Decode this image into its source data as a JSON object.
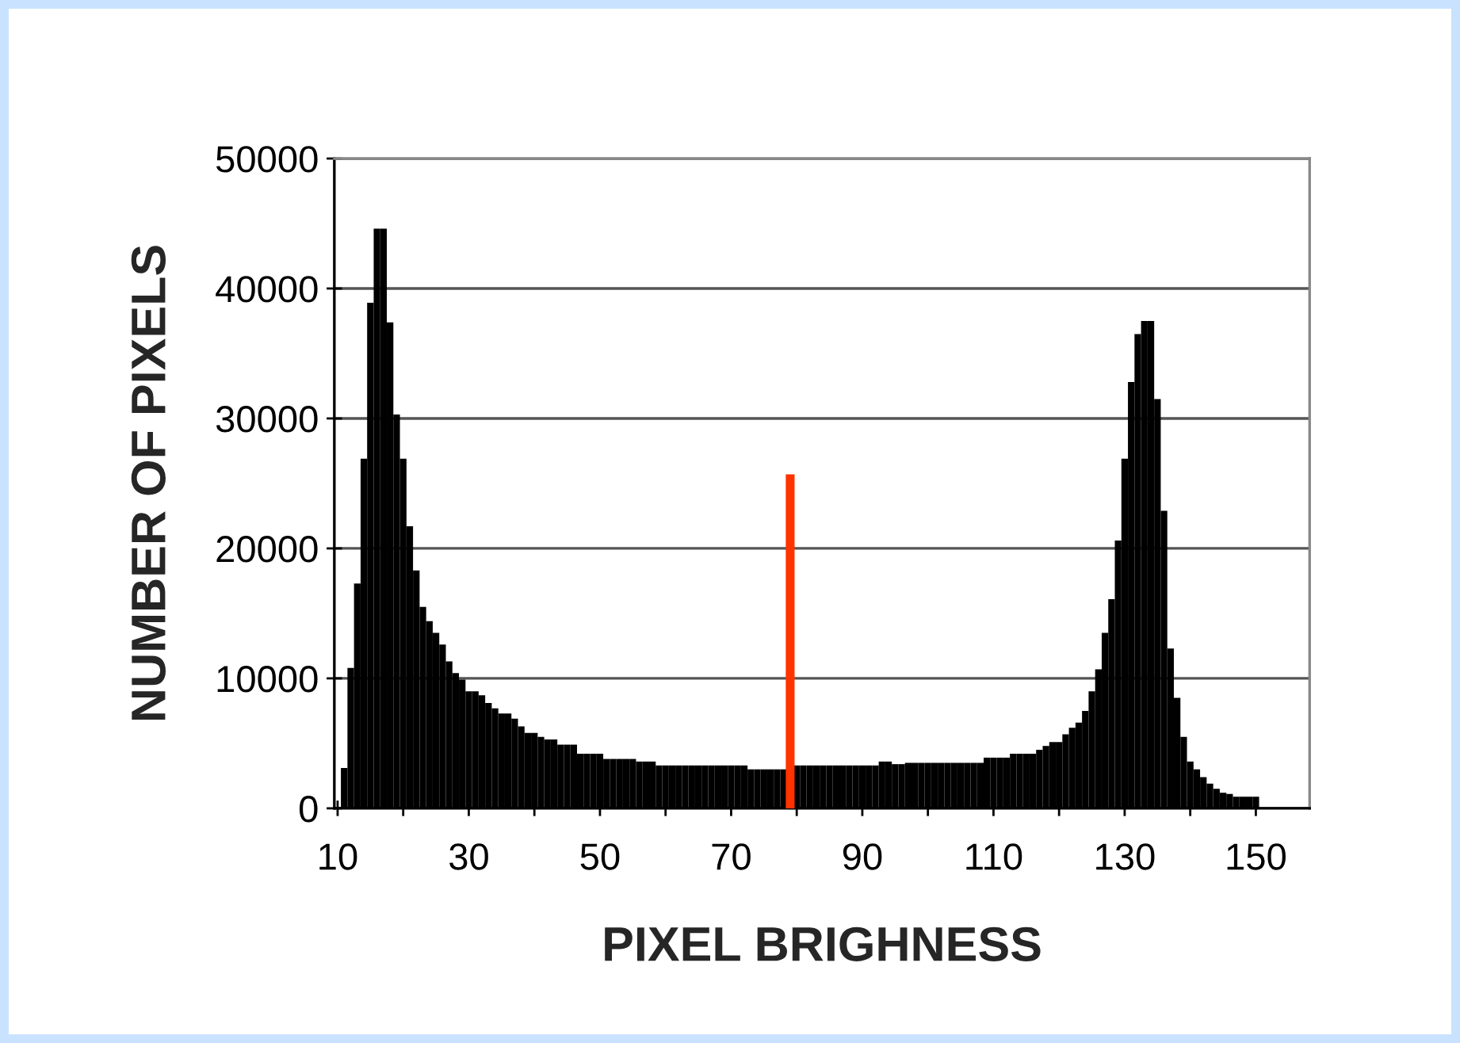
{
  "chart_data": {
    "type": "histogram",
    "xlabel": "PIXEL BRIGHNESS",
    "ylabel": "NUMBER OF PIXELS",
    "bins": [
      10.5,
      11.5,
      12.5,
      13.5,
      14.5,
      15.5,
      16.5,
      17.5,
      18.5,
      19.5,
      20.5,
      21.5,
      22.5,
      23.5,
      24.5,
      25.5,
      26.5,
      27.5,
      28.5,
      29.5,
      30.5,
      31.5,
      32.5,
      33.5,
      34.5,
      35.5,
      36.5,
      37.5,
      38.5,
      39.5,
      40.5,
      41.5,
      42.5,
      43.5,
      44.5,
      45.5,
      46.5,
      47.5,
      48.5,
      49.5,
      50.5,
      51.5,
      52.5,
      53.5,
      54.5,
      55.5,
      56.5,
      57.5,
      58.5,
      59.5,
      60.5,
      61.5,
      62.5,
      63.5,
      64.5,
      65.5,
      66.5,
      67.5,
      68.5,
      69.5,
      70.5,
      71.5,
      72.5,
      73.5,
      74.5,
      75.5,
      76.5,
      77.5,
      78.5,
      79.5,
      80.5,
      81.5,
      82.5,
      83.5,
      84.5,
      85.5,
      86.5,
      87.5,
      88.5,
      89.5,
      90.5,
      91.5,
      92.5,
      93.5,
      94.5,
      95.5,
      96.5,
      97.5,
      98.5,
      99.5,
      100.5,
      101.5,
      102.5,
      103.5,
      104.5,
      105.5,
      106.5,
      107.5,
      108.5,
      109.5,
      110.5,
      111.5,
      112.5,
      113.5,
      114.5,
      115.5,
      116.5,
      117.5,
      118.5,
      119.5,
      120.5,
      121.5,
      122.5,
      123.5,
      124.5,
      125.5,
      126.5,
      127.5,
      128.5,
      129.5,
      130.5,
      131.5,
      132.5,
      133.5,
      134.5,
      135.5,
      136.5,
      137.5,
      138.5,
      139.5,
      140.5,
      141.5,
      142.5,
      143.5,
      144.5,
      145.5,
      146.5,
      147.5,
      148.5,
      149.5,
      150.5
    ],
    "values": [
      3100,
      10800,
      17300,
      26900,
      38900,
      44600,
      44600,
      37400,
      30300,
      26900,
      21700,
      18300,
      15500,
      14400,
      13500,
      12600,
      11300,
      10400,
      9900,
      9000,
      9000,
      8700,
      8100,
      7700,
      7300,
      7300,
      6900,
      6300,
      5800,
      5800,
      5500,
      5300,
      5300,
      4900,
      4900,
      4900,
      4200,
      4200,
      4200,
      4200,
      3800,
      3800,
      3800,
      3800,
      3800,
      3600,
      3600,
      3600,
      3300,
      3300,
      3300,
      3300,
      3300,
      3300,
      3300,
      3300,
      3300,
      3300,
      3300,
      3300,
      3300,
      3300,
      3000,
      3000,
      3000,
      3000,
      3000,
      3000,
      null,
      3300,
      3300,
      3300,
      3300,
      3300,
      3300,
      3300,
      3300,
      3300,
      3300,
      3300,
      3300,
      3300,
      3600,
      3600,
      3400,
      3400,
      3500,
      3500,
      3500,
      3500,
      3500,
      3500,
      3500,
      3500,
      3500,
      3500,
      3500,
      3500,
      3900,
      3900,
      3900,
      3900,
      4200,
      4200,
      4200,
      4200,
      4500,
      4800,
      5100,
      5100,
      5700,
      6200,
      6600,
      7500,
      9000,
      10700,
      13500,
      16100,
      20600,
      26900,
      32800,
      36500,
      37500,
      37500,
      31500,
      22900,
      12300,
      8500,
      5500,
      3600,
      3000,
      2400,
      1900,
      1500,
      1200,
      1100,
      900,
      900,
      900,
      900
    ],
    "color": "#000000",
    "series": [
      {
        "type": "line",
        "x": [
          79,
          79
        ],
        "values": [
          0,
          25700
        ],
        "color": "#ff3300"
      }
    ],
    "xlim": [
      9.5,
      158.2
    ],
    "xticks": [
      10,
      {
        "value": 20,
        "label": null
      },
      30,
      {
        "value": 40,
        "label": null
      },
      50,
      {
        "value": 60,
        "label": null
      },
      70,
      {
        "value": 80,
        "label": null
      },
      90,
      {
        "value": 100,
        "label": null
      },
      110,
      {
        "value": 120,
        "label": null
      },
      130,
      {
        "value": 140,
        "label": null
      },
      150
    ],
    "ylim": [
      0,
      50000
    ],
    "yticks": [
      0,
      10000,
      20000,
      30000,
      40000,
      50000
    ],
    "grid": "y"
  }
}
